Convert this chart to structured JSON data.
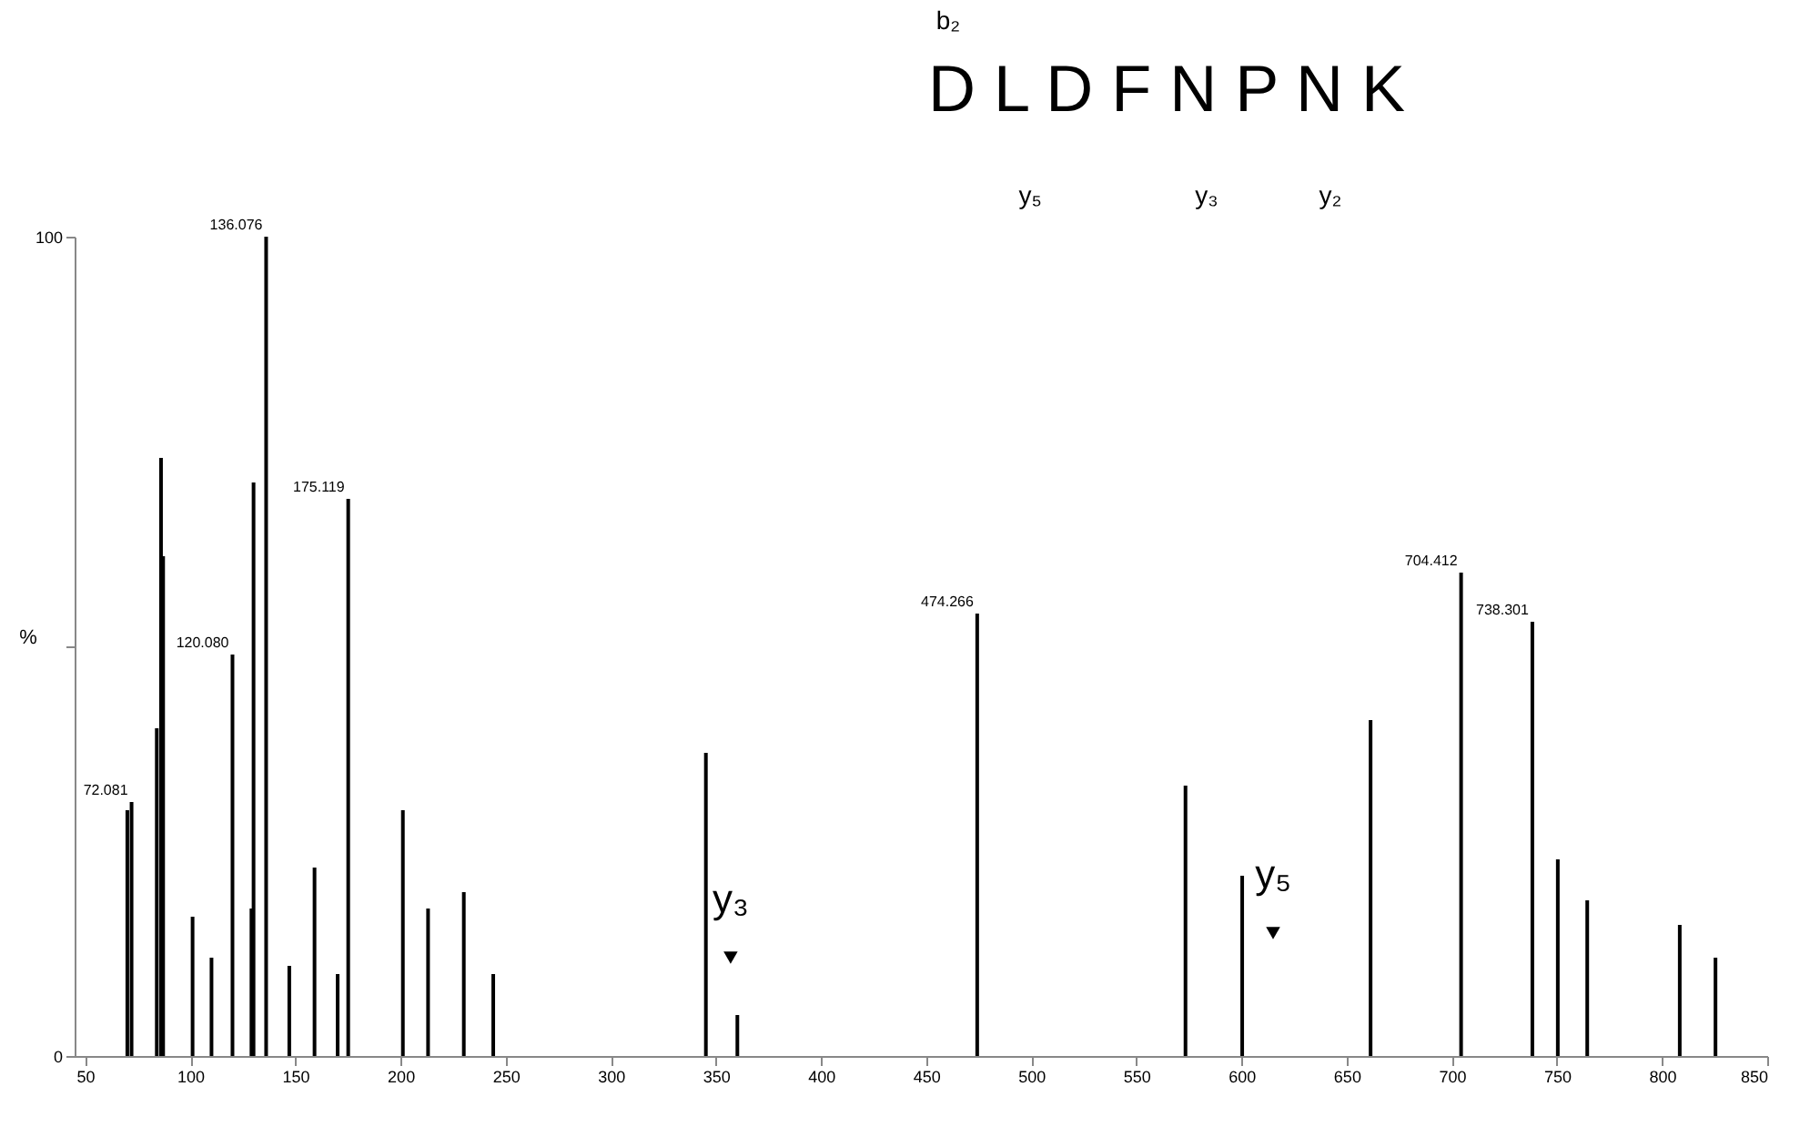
{
  "chart_data": {
    "type": "bar",
    "ylabel": "%",
    "x": [
      70.07,
      72.08,
      84.08,
      86.1,
      87.1,
      101.1,
      110.1,
      120.08,
      129.1,
      130.1,
      136.08,
      147.1,
      159.1,
      170.1,
      175.12,
      201.12,
      213.1,
      230.1,
      244.1,
      345.23,
      360.2,
      474.27,
      573.33,
      600.3,
      661.36,
      704.41,
      738.3,
      750.4,
      764.4,
      808.4,
      825.4
    ],
    "values": [
      30,
      31,
      40,
      73,
      61,
      17,
      12,
      49,
      18,
      70,
      100,
      11,
      23,
      10,
      68,
      30,
      18,
      20,
      10,
      37,
      5,
      54,
      33,
      22,
      41,
      59,
      53,
      24,
      19,
      16,
      12
    ],
    "color": "#000000",
    "xlim": [
      45,
      850
    ],
    "xticks": [
      50,
      100,
      150,
      200,
      250,
      300,
      350,
      400,
      450,
      500,
      550,
      600,
      650,
      700,
      750,
      800,
      850
    ],
    "ylim": [
      0,
      100
    ],
    "yticks": [
      0,
      {
        "value": 50,
        "label": null
      },
      100
    ],
    "annotations": [
      {
        "text": "y₃",
        "x": 357,
        "y": 12
      },
      {
        "text": "y₅",
        "x": 615,
        "y": 15
      },
      {
        "text": "72.081",
        "x": 72.08,
        "y": 31
      },
      {
        "text": "120.080",
        "x": 120.08,
        "y": 49
      },
      {
        "text": "136.076",
        "x": 136.08,
        "y": 100
      },
      {
        "text": "175.119",
        "x": 175.12,
        "y": 68
      },
      {
        "text": "474.266",
        "x": 474.27,
        "y": 54
      },
      {
        "text": "704.412",
        "x": 704.41,
        "y": 59
      },
      {
        "text": "738.301",
        "x": 738.3,
        "y": 53
      },
      "D L D F N P N K",
      "b₂",
      "y₅",
      "y₃",
      "y₂"
    ],
    "grid": false
  }
}
